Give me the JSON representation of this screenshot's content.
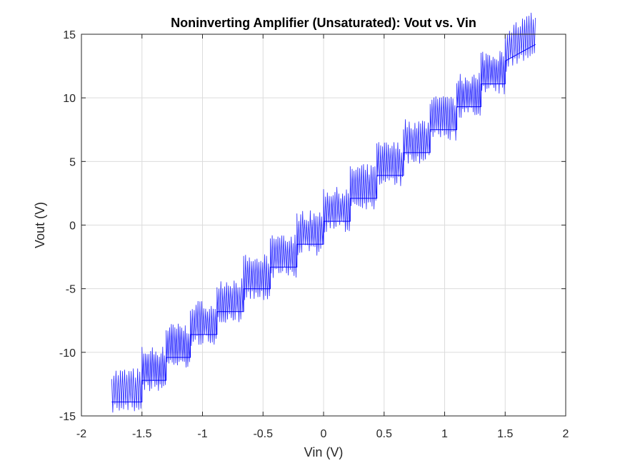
{
  "chart_data": {
    "type": "line",
    "title": "Noninverting Amplifier (Unsaturated): Vout vs. Vin",
    "xlabel": "Vin (V)",
    "ylabel": "Vout (V)",
    "xlim": [
      -2,
      2
    ],
    "ylim": [
      -15,
      15
    ],
    "xticks": [
      -2,
      -1.5,
      -1,
      -0.5,
      0,
      0.5,
      1,
      1.5,
      2
    ],
    "yticks": [
      -15,
      -10,
      -5,
      0,
      5,
      10,
      15
    ],
    "xtick_labels": [
      "-2",
      "-1.5",
      "-1",
      "-0.5",
      "0",
      "0.5",
      "1",
      "1.5",
      "2"
    ],
    "ytick_labels": [
      "-15",
      "-10",
      "-5",
      "0",
      "5",
      "10",
      "15"
    ],
    "grid": true,
    "box": true,
    "series": [
      {
        "color": "#0000ff",
        "style": "dense staircase band (gain ≈ 8.2, steps ≈ 0.22 V wide)",
        "x": [
          -1.75,
          -1.5,
          -1.5,
          -1.3,
          -1.3,
          -1.1,
          -1.1,
          -0.88,
          -0.88,
          -0.66,
          -0.66,
          -0.44,
          -0.44,
          -0.22,
          -0.22,
          0.0,
          0.0,
          0.22,
          0.22,
          0.44,
          0.44,
          0.66,
          0.66,
          0.88,
          0.88,
          1.1,
          1.1,
          1.3,
          1.3,
          1.5,
          1.5,
          1.75
        ],
        "y": [
          -13.9,
          -13.9,
          -12.2,
          -12.2,
          -10.4,
          -10.4,
          -8.6,
          -8.6,
          -6.8,
          -6.8,
          -5.0,
          -5.0,
          -3.3,
          -3.3,
          -1.5,
          -1.5,
          0.3,
          0.3,
          2.1,
          2.1,
          3.9,
          3.9,
          5.7,
          5.7,
          7.5,
          7.5,
          9.3,
          9.3,
          11.1,
          11.1,
          12.9,
          14.2
        ]
      }
    ]
  }
}
